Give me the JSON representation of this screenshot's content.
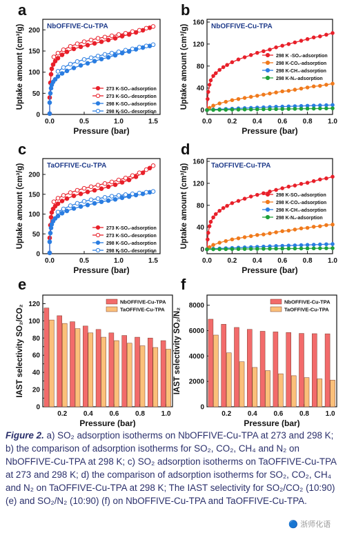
{
  "colors": {
    "red": "#e8202a",
    "orange": "#f07a1c",
    "blue": "#2a7de1",
    "green": "#1fa13a",
    "navy": "#1f3b8a",
    "bar_red": "#f26b6b",
    "bar_orange": "#fbc07a",
    "caption": "#2a2f6b"
  },
  "caption": {
    "lead": "Figure 2.",
    "text": "a) SO₂ adsorption isotherms on NbOFFIVE-Cu-TPA at 273 and 298 K; b) the comparison of adsorption isotherms for SO₂, CO₂, CH₄ and N₂ on NbOFFIVE-Cu-TPA at 298 K; c) SO₂ adsorption isotherms on TaOFFIVE-Cu-TPA at 273 and 298 K; d) the comparison of adsorption isotherms for SO₂, CO₂, CH₄ and N₂ on TaOFFIVE-Cu-TPA at 298 K; The IAST selectivity for SO₂/CO₂ (10:90) (e) and SO₂/N₂ (10:90) (f) on NbOFFIVE-Cu-TPA and TaOFFIVE-Cu-TPA."
  },
  "watermark": "🔵 浙师化语",
  "chart_data": [
    {
      "id": "a",
      "type": "line",
      "panel_label": "a",
      "title": "NbOFFIVE-Cu-TPA",
      "xlabel": "Pressure (bar)",
      "ylabel": "Uptake amount (cm³/g)",
      "xlim": [
        -0.1,
        1.6
      ],
      "ylim": [
        0,
        225
      ],
      "xticks": [
        0.0,
        0.5,
        1.0,
        1.5
      ],
      "yticks": [
        0,
        50,
        100,
        150,
        200
      ],
      "legend_position": "bottom-right",
      "series": [
        {
          "name": "273 K-SO₂-adsorption",
          "color": "red",
          "marker": "filled",
          "x": [
            0.0,
            0.0,
            0.01,
            0.02,
            0.03,
            0.05,
            0.08,
            0.12,
            0.18,
            0.25,
            0.35,
            0.45,
            0.55,
            0.65,
            0.75,
            0.85,
            0.95,
            1.05,
            1.15,
            1.25,
            1.35,
            1.45
          ],
          "y": [
            2,
            40,
            75,
            95,
            108,
            118,
            126,
            133,
            141,
            148,
            155,
            160,
            164,
            168,
            172,
            176,
            180,
            185,
            189,
            194,
            199,
            205
          ]
        },
        {
          "name": "273 K-SO₂-desorption",
          "color": "red",
          "marker": "open",
          "x": [
            1.5,
            1.4,
            1.3,
            1.2,
            1.1,
            1.0,
            0.9,
            0.8,
            0.7,
            0.6,
            0.5,
            0.4,
            0.3,
            0.2,
            0.12,
            0.06
          ],
          "y": [
            208,
            204,
            199,
            196,
            192,
            189,
            186,
            183,
            180,
            176,
            172,
            167,
            161,
            153,
            145,
            136
          ]
        },
        {
          "name": "298 K-SO₂-adsorption",
          "color": "blue",
          "marker": "filled",
          "x": [
            0.0,
            0.0,
            0.01,
            0.02,
            0.03,
            0.05,
            0.08,
            0.12,
            0.18,
            0.25,
            0.35,
            0.45,
            0.55,
            0.65,
            0.75,
            0.85,
            0.95,
            1.05,
            1.15,
            1.25,
            1.35,
            1.45
          ],
          "y": [
            2,
            28,
            50,
            62,
            70,
            77,
            83,
            90,
            97,
            103,
            110,
            116,
            121,
            126,
            131,
            135,
            140,
            145,
            149,
            154,
            158,
            162
          ]
        },
        {
          "name": "298 K-SO₂-desorption",
          "color": "blue",
          "marker": "open",
          "x": [
            1.5,
            1.4,
            1.3,
            1.2,
            1.1,
            1.0,
            0.9,
            0.8,
            0.7,
            0.6,
            0.5,
            0.4,
            0.3,
            0.2,
            0.12
          ],
          "y": [
            165,
            162,
            159,
            155,
            152,
            148,
            145,
            142,
            138,
            134,
            130,
            125,
            119,
            111,
            102
          ]
        }
      ]
    },
    {
      "id": "b",
      "type": "line",
      "panel_label": "b",
      "title": "NbOFFIVE-Cu-TPA",
      "xlabel": "Pressure (bar)",
      "ylabel": "Uptake amount (cm³/g)",
      "xlim": [
        0,
        1.0
      ],
      "ylim": [
        -8,
        165
      ],
      "xticks": [
        0.0,
        0.2,
        0.4,
        0.6,
        0.8,
        1.0
      ],
      "yticks": [
        0,
        40,
        80,
        120,
        160
      ],
      "legend_position": "right",
      "series": [
        {
          "name": "298 K -SO₂-adsorption",
          "color": "red",
          "marker": "filled",
          "x": [
            0.0,
            0.005,
            0.01,
            0.02,
            0.03,
            0.05,
            0.07,
            0.1,
            0.13,
            0.16,
            0.2,
            0.25,
            0.3,
            0.35,
            0.4,
            0.45,
            0.5,
            0.55,
            0.6,
            0.65,
            0.7,
            0.75,
            0.8,
            0.85,
            0.9,
            0.95,
            1.0
          ],
          "y": [
            0,
            20,
            33,
            46,
            54,
            62,
            67,
            73,
            78,
            82,
            87,
            92,
            96,
            100,
            104,
            107,
            110,
            114,
            117,
            120,
            123,
            126,
            129,
            132,
            134,
            137,
            140
          ]
        },
        {
          "name": "298 K-CO₂-adsorption",
          "color": "orange",
          "marker": "filled",
          "x": [
            0.0,
            0.02,
            0.05,
            0.1,
            0.15,
            0.2,
            0.25,
            0.3,
            0.35,
            0.4,
            0.45,
            0.5,
            0.55,
            0.6,
            0.65,
            0.7,
            0.75,
            0.8,
            0.85,
            0.9,
            0.95,
            1.0
          ],
          "y": [
            0,
            4,
            8,
            12,
            15,
            18,
            20,
            22,
            24,
            26,
            28,
            30,
            32,
            34,
            35,
            37,
            39,
            41,
            43,
            44,
            46,
            48
          ]
        },
        {
          "name": "298 K-CH₄-adsorption",
          "color": "blue",
          "marker": "filled",
          "x": [
            0.0,
            0.05,
            0.1,
            0.15,
            0.2,
            0.25,
            0.3,
            0.35,
            0.4,
            0.45,
            0.5,
            0.55,
            0.6,
            0.65,
            0.7,
            0.75,
            0.8,
            0.85,
            0.9,
            0.95,
            1.0
          ],
          "y": [
            0,
            1,
            1.5,
            2,
            2.5,
            3,
            3.5,
            4,
            4.5,
            5,
            5.5,
            6,
            6.3,
            6.7,
            7,
            7.4,
            7.8,
            8.1,
            8.5,
            8.8,
            9.2
          ]
        },
        {
          "name": "298 K-N₂-adsorption",
          "color": "green",
          "marker": "filled",
          "x": [
            0.0,
            0.05,
            0.1,
            0.15,
            0.2,
            0.25,
            0.3,
            0.35,
            0.4,
            0.45,
            0.5,
            0.55,
            0.6,
            0.65,
            0.7,
            0.75,
            0.8,
            0.85,
            0.9,
            0.95,
            1.0
          ],
          "y": [
            0,
            0.2,
            0.4,
            0.5,
            0.7,
            0.8,
            1.0,
            1.1,
            1.3,
            1.4,
            1.6,
            1.7,
            1.9,
            2.0,
            2.2,
            2.3,
            2.5,
            2.6,
            2.8,
            2.9,
            3.1
          ]
        }
      ]
    },
    {
      "id": "c",
      "type": "line",
      "panel_label": "c",
      "title": "TaOFFIVE-Cu-TPA",
      "xlabel": "Pressure (bar)",
      "ylabel": "Uptake amount (cm³/g)",
      "xlim": [
        -0.1,
        1.6
      ],
      "ylim": [
        0,
        240
      ],
      "xticks": [
        0.0,
        0.5,
        1.0,
        1.5
      ],
      "yticks": [
        0,
        50,
        100,
        150,
        200
      ],
      "legend_position": "bottom-right",
      "series": [
        {
          "name": "273 K-SO₂-adsorption",
          "color": "red",
          "marker": "filled",
          "x": [
            0.0,
            0.0,
            0.01,
            0.02,
            0.03,
            0.05,
            0.08,
            0.12,
            0.18,
            0.25,
            0.35,
            0.45,
            0.55,
            0.65,
            0.75,
            0.85,
            0.95,
            1.05,
            1.15,
            1.25,
            1.35,
            1.45
          ],
          "y": [
            2,
            40,
            72,
            92,
            104,
            113,
            120,
            126,
            133,
            139,
            146,
            151,
            156,
            160,
            164,
            169,
            174,
            180,
            186,
            194,
            204,
            216
          ]
        },
        {
          "name": "273 K-SO₂-desorption",
          "color": "red",
          "marker": "open",
          "x": [
            1.5,
            1.4,
            1.3,
            1.2,
            1.1,
            1.0,
            0.9,
            0.8,
            0.7,
            0.6,
            0.5,
            0.4,
            0.3,
            0.2,
            0.12,
            0.06
          ],
          "y": [
            222,
            212,
            204,
            197,
            191,
            186,
            181,
            177,
            173,
            169,
            165,
            160,
            154,
            147,
            140,
            131
          ]
        },
        {
          "name": "298 K-SO₂-adsorption",
          "color": "blue",
          "marker": "filled",
          "x": [
            0.0,
            0.0,
            0.01,
            0.02,
            0.03,
            0.05,
            0.08,
            0.12,
            0.18,
            0.25,
            0.35,
            0.45,
            0.55,
            0.65,
            0.75,
            0.85,
            0.95,
            1.05,
            1.15,
            1.25,
            1.35,
            1.45
          ],
          "y": [
            2,
            30,
            52,
            65,
            74,
            82,
            89,
            95,
            102,
            108,
            114,
            119,
            123,
            127,
            131,
            134,
            137,
            141,
            144,
            148,
            151,
            155
          ]
        },
        {
          "name": "298 K-SO₂-desorption",
          "color": "blue",
          "marker": "open",
          "x": [
            1.5,
            1.4,
            1.3,
            1.2,
            1.1,
            1.0,
            0.9,
            0.8,
            0.7,
            0.6,
            0.5,
            0.4,
            0.3,
            0.2,
            0.12
          ],
          "y": [
            157,
            155,
            153,
            151,
            149,
            147,
            145,
            142,
            139,
            136,
            132,
            127,
            121,
            113,
            105
          ]
        }
      ]
    },
    {
      "id": "d",
      "type": "line",
      "panel_label": "d",
      "title": "TaOFFIVE-Cu-TPA",
      "xlabel": "Pressure (bar)",
      "ylabel": "Uptake amount (cm³/g)",
      "xlim": [
        0,
        1.0
      ],
      "ylim": [
        -8,
        165
      ],
      "xticks": [
        0.0,
        0.2,
        0.4,
        0.6,
        0.8,
        1.0
      ],
      "yticks": [
        0,
        40,
        80,
        120,
        160
      ],
      "legend_position": "right",
      "series": [
        {
          "name": "298 K-SO₂-adsorption",
          "color": "red",
          "marker": "filled",
          "x": [
            0.0,
            0.005,
            0.01,
            0.02,
            0.03,
            0.05,
            0.07,
            0.1,
            0.13,
            0.16,
            0.2,
            0.25,
            0.3,
            0.35,
            0.4,
            0.45,
            0.5,
            0.55,
            0.6,
            0.65,
            0.7,
            0.75,
            0.8,
            0.85,
            0.9,
            0.95,
            1.0
          ],
          "y": [
            0,
            18,
            30,
            42,
            50,
            58,
            64,
            70,
            75,
            79,
            84,
            88,
            92,
            96,
            99,
            102,
            105,
            108,
            111,
            114,
            116,
            119,
            121,
            124,
            127,
            129,
            132
          ]
        },
        {
          "name": "298 K-CO₂-adsorption",
          "color": "orange",
          "marker": "filled",
          "x": [
            0.0,
            0.02,
            0.05,
            0.1,
            0.15,
            0.2,
            0.25,
            0.3,
            0.35,
            0.4,
            0.45,
            0.5,
            0.55,
            0.6,
            0.65,
            0.7,
            0.75,
            0.8,
            0.85,
            0.9,
            0.95,
            1.0
          ],
          "y": [
            0,
            4,
            8,
            12,
            15,
            18,
            20,
            22,
            24,
            26,
            27,
            29,
            31,
            33,
            34,
            36,
            38,
            39,
            41,
            42,
            44,
            45
          ]
        },
        {
          "name": "298 K-CH₄-adsorption",
          "color": "blue",
          "marker": "filled",
          "x": [
            0.0,
            0.05,
            0.1,
            0.15,
            0.2,
            0.25,
            0.3,
            0.35,
            0.4,
            0.45,
            0.5,
            0.55,
            0.6,
            0.65,
            0.7,
            0.75,
            0.8,
            0.85,
            0.9,
            0.95,
            1.0
          ],
          "y": [
            0,
            1,
            1.5,
            2,
            2.5,
            3,
            3.5,
            4,
            4.5,
            5,
            5.5,
            6,
            6.4,
            6.8,
            7.2,
            7.6,
            8,
            8.4,
            8.8,
            9.2,
            9.6
          ]
        },
        {
          "name": "298 K-N₂-adsorption",
          "color": "green",
          "marker": "filled",
          "x": [
            0.0,
            0.05,
            0.1,
            0.15,
            0.2,
            0.25,
            0.3,
            0.35,
            0.4,
            0.45,
            0.5,
            0.55,
            0.6,
            0.65,
            0.7,
            0.75,
            0.8,
            0.85,
            0.9,
            0.95,
            1.0
          ],
          "y": [
            0,
            0.1,
            0.2,
            0.3,
            0.4,
            0.5,
            0.6,
            0.7,
            0.8,
            0.9,
            1.0,
            1.1,
            1.2,
            1.3,
            1.4,
            1.5,
            1.6,
            1.7,
            1.8,
            1.9,
            2.0
          ]
        }
      ]
    },
    {
      "id": "e",
      "type": "bar",
      "panel_label": "e",
      "xlabel": "Pressure (bar)",
      "ylabel": "IAST selectivity SO₂/CO₂",
      "xlim": [
        0.05,
        1.05
      ],
      "ylim": [
        0,
        130
      ],
      "xticks": [
        0.2,
        0.4,
        0.6,
        0.8,
        1.0
      ],
      "yticks": [
        0,
        10,
        20,
        30,
        40,
        50,
        60,
        70,
        80,
        90,
        100,
        110,
        120
      ],
      "legend_position": "top-right",
      "x": [
        0.1,
        0.2,
        0.3,
        0.4,
        0.5,
        0.6,
        0.7,
        0.8,
        0.9,
        1.0
      ],
      "series": [
        {
          "name": "NbOFFIVE-Cu-TPA",
          "color": "bar_red",
          "values": [
            115,
            106,
            99,
            94,
            90,
            86,
            83,
            81,
            80,
            77
          ]
        },
        {
          "name": "TaOFFIVE-Cu-TPA",
          "color": "bar_orange",
          "values": [
            101,
            97,
            91,
            86,
            81,
            77,
            74,
            71,
            69,
            67
          ]
        }
      ]
    },
    {
      "id": "f",
      "type": "bar",
      "panel_label": "f",
      "xlabel": "Pressure (bar)",
      "ylabel": "IAST selectivity SO₂/N₂",
      "xlim": [
        0.05,
        1.05
      ],
      "ylim": [
        0,
        8800
      ],
      "xticks": [
        0.2,
        0.4,
        0.6,
        0.8,
        1.0
      ],
      "yticks": [
        0,
        2000,
        4000,
        6000,
        8000
      ],
      "legend_position": "top-right",
      "x": [
        0.1,
        0.2,
        0.3,
        0.4,
        0.5,
        0.6,
        0.7,
        0.8,
        0.9,
        1.0
      ],
      "series": [
        {
          "name": "NbOFFIVE-Cu-TPA",
          "color": "bar_red",
          "values": [
            6900,
            6500,
            6250,
            6100,
            5950,
            5900,
            5850,
            5780,
            5760,
            5750
          ]
        },
        {
          "name": "TaOFFIVE-Cu-TPA",
          "color": "bar_orange",
          "values": [
            5650,
            4250,
            3550,
            3100,
            2850,
            2600,
            2450,
            2300,
            2200,
            2100
          ]
        }
      ]
    }
  ]
}
